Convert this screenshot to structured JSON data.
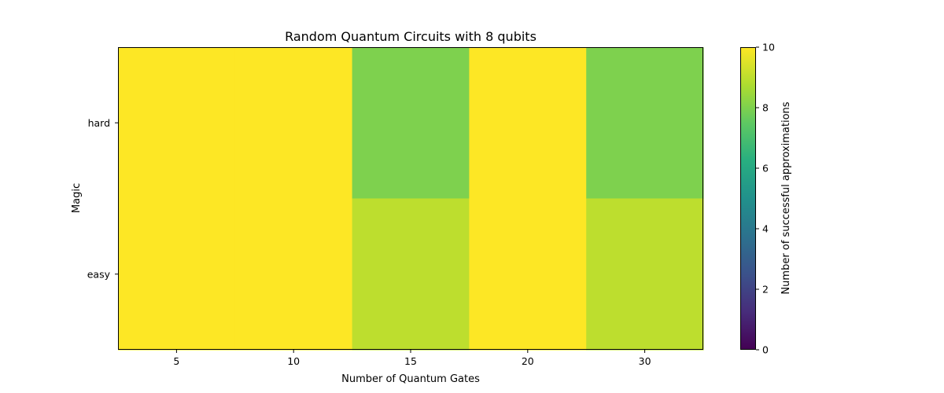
{
  "chart_data": {
    "type": "heatmap",
    "title": "Random Quantum Circuits with 8 qubits",
    "xlabel": "Number of Quantum Gates",
    "ylabel": "Magic",
    "x_categories": [
      "5",
      "10",
      "15",
      "20",
      "30"
    ],
    "y_categories": [
      "easy",
      "hard"
    ],
    "values": {
      "hard": [
        10,
        10,
        8,
        10,
        8
      ],
      "easy": [
        10,
        10,
        9,
        10,
        9
      ]
    },
    "colorbar": {
      "label": "Number of successful approximations",
      "range": [
        0,
        10
      ],
      "ticks": [
        0,
        2,
        4,
        6,
        8,
        10
      ],
      "colormap": "viridis"
    }
  }
}
